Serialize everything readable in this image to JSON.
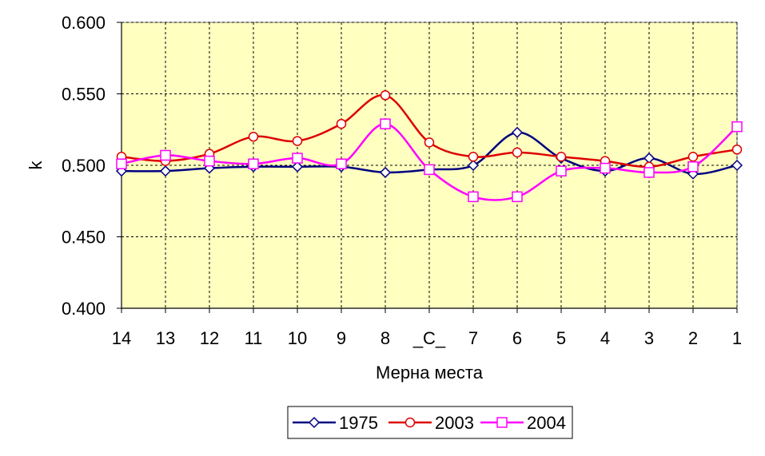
{
  "chart_data": {
    "type": "line",
    "xlabel": "Мерна места",
    "ylabel": "k",
    "categories": [
      "14",
      "13",
      "12",
      "11",
      "10",
      "9",
      "8",
      "_C_",
      "7",
      "6",
      "5",
      "4",
      "3",
      "2",
      "1"
    ],
    "ylim": [
      0.4,
      0.6
    ],
    "yticks": [
      "0.400",
      "0.450",
      "0.500",
      "0.550",
      "0.600"
    ],
    "ytick_values": [
      0.4,
      0.45,
      0.5,
      0.55,
      0.6
    ],
    "grid": true,
    "legend_position": "bottom",
    "series": [
      {
        "name": "1975",
        "color": "#000080",
        "marker": "diamond",
        "values": [
          0.496,
          0.496,
          0.498,
          0.499,
          0.499,
          0.499,
          0.495,
          0.497,
          0.5,
          0.523,
          0.505,
          0.496,
          0.505,
          0.494,
          0.5
        ]
      },
      {
        "name": "2003",
        "color": "#dd0000",
        "marker": "circle",
        "values": [
          0.506,
          0.503,
          0.508,
          0.52,
          0.517,
          0.529,
          0.549,
          0.516,
          0.506,
          0.509,
          0.506,
          0.503,
          0.499,
          0.506,
          0.511
        ]
      },
      {
        "name": "2004",
        "color": "#ff00ff",
        "marker": "square",
        "values": [
          0.501,
          0.507,
          0.503,
          0.501,
          0.505,
          0.501,
          0.529,
          0.497,
          0.478,
          0.478,
          0.496,
          0.498,
          0.495,
          0.499,
          0.527
        ]
      }
    ],
    "plot_background": "#ffffc0"
  }
}
